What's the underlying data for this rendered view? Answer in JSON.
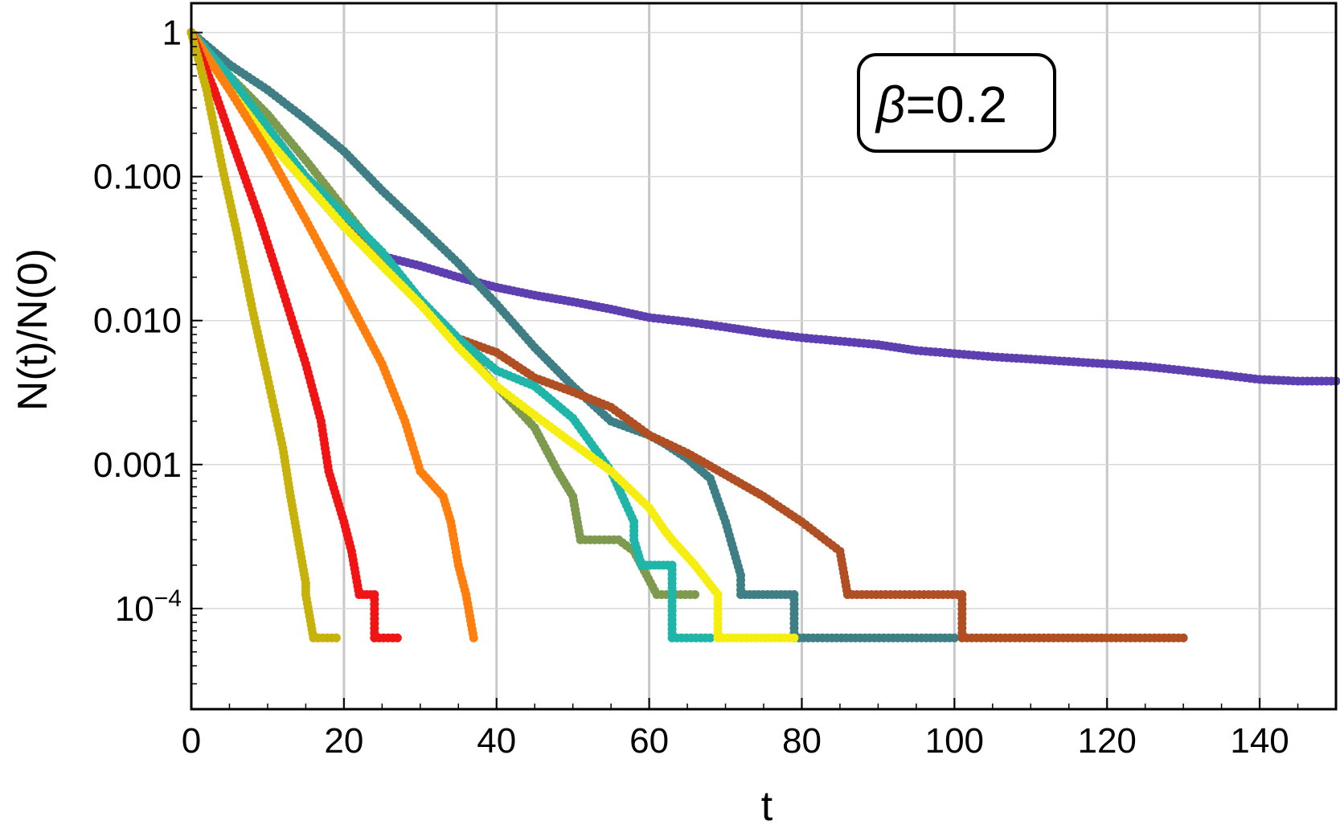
{
  "chart_data": {
    "type": "scatter",
    "title": "",
    "xlabel": "t",
    "ylabel": "N(t)/N(0)",
    "xlim": [
      0,
      150
    ],
    "ylim": [
      2e-05,
      1.6
    ],
    "yscale": "log",
    "grid": true,
    "annotation": {
      "beta_symbol": "β",
      "text": "=0.2"
    },
    "xticks": [
      {
        "value": 0,
        "label": "0"
      },
      {
        "value": 20,
        "label": "20"
      },
      {
        "value": 40,
        "label": "40"
      },
      {
        "value": 60,
        "label": "60"
      },
      {
        "value": 80,
        "label": "80"
      },
      {
        "value": 100,
        "label": "100"
      },
      {
        "value": 120,
        "label": "120"
      },
      {
        "value": 140,
        "label": "140"
      }
    ],
    "yticks": [
      {
        "value": 1,
        "label": "1",
        "kind": "plain"
      },
      {
        "value": 0.1,
        "label": "0.100",
        "kind": "plain"
      },
      {
        "value": 0.01,
        "label": "0.010",
        "kind": "plain"
      },
      {
        "value": 0.001,
        "label": "0.001",
        "kind": "plain"
      },
      {
        "value": 0.0001,
        "label": "10",
        "exponent": "−4",
        "kind": "power"
      }
    ],
    "series": [
      {
        "color": "#5E3FB0",
        "points": [
          [
            0,
            1
          ],
          [
            5,
            0.45
          ],
          [
            10,
            0.2
          ],
          [
            15,
            0.09
          ],
          [
            20,
            0.045
          ],
          [
            25,
            0.028
          ],
          [
            30,
            0.024
          ],
          [
            35,
            0.02
          ],
          [
            40,
            0.017
          ],
          [
            45,
            0.015
          ],
          [
            50,
            0.0135
          ],
          [
            55,
            0.012
          ],
          [
            60,
            0.0105
          ],
          [
            65,
            0.0098
          ],
          [
            70,
            0.009
          ],
          [
            75,
            0.0082
          ],
          [
            80,
            0.0076
          ],
          [
            85,
            0.0072
          ],
          [
            90,
            0.0068
          ],
          [
            95,
            0.0062
          ],
          [
            100,
            0.0059
          ],
          [
            105,
            0.0056
          ],
          [
            110,
            0.0054
          ],
          [
            115,
            0.0052
          ],
          [
            120,
            0.005
          ],
          [
            125,
            0.0048
          ],
          [
            130,
            0.0045
          ],
          [
            135,
            0.0042
          ],
          [
            140,
            0.0039
          ],
          [
            145,
            0.0038
          ],
          [
            150,
            0.0038
          ]
        ]
      },
      {
        "color": "#3E7E84",
        "points": [
          [
            0,
            1
          ],
          [
            5,
            0.6
          ],
          [
            10,
            0.4
          ],
          [
            15,
            0.25
          ],
          [
            20,
            0.15
          ],
          [
            25,
            0.08
          ],
          [
            30,
            0.045
          ],
          [
            35,
            0.025
          ],
          [
            40,
            0.013
          ],
          [
            45,
            0.0065
          ],
          [
            50,
            0.0035
          ],
          [
            55,
            0.002
          ],
          [
            60,
            0.0016
          ],
          [
            62,
            0.0014
          ],
          [
            65,
            0.0011
          ],
          [
            68,
            0.0008
          ],
          [
            70,
            0.0004
          ],
          [
            72,
            0.00017
          ],
          [
            72,
            0.000125
          ],
          [
            79,
            0.000125
          ],
          [
            79,
            6.25e-05
          ],
          [
            100,
            6.25e-05
          ]
        ]
      },
      {
        "color": "#B04F24",
        "points": [
          [
            0,
            1
          ],
          [
            5,
            0.42
          ],
          [
            10,
            0.2
          ],
          [
            15,
            0.1
          ],
          [
            20,
            0.05
          ],
          [
            25,
            0.025
          ],
          [
            30,
            0.013
          ],
          [
            35,
            0.0075
          ],
          [
            40,
            0.006
          ],
          [
            45,
            0.004
          ],
          [
            50,
            0.0032
          ],
          [
            55,
            0.0025
          ],
          [
            60,
            0.0016
          ],
          [
            65,
            0.0012
          ],
          [
            70,
            0.00085
          ],
          [
            75,
            0.0006
          ],
          [
            80,
            0.0004
          ],
          [
            85,
            0.00025
          ],
          [
            86,
            0.000125
          ],
          [
            101,
            0.000125
          ],
          [
            101,
            6.25e-05
          ],
          [
            130,
            6.25e-05
          ]
        ]
      },
      {
        "color": "#7D9A4F",
        "points": [
          [
            0,
            1
          ],
          [
            5,
            0.5
          ],
          [
            10,
            0.27
          ],
          [
            15,
            0.13
          ],
          [
            20,
            0.06
          ],
          [
            25,
            0.028
          ],
          [
            30,
            0.014
          ],
          [
            35,
            0.007
          ],
          [
            40,
            0.0035
          ],
          [
            45,
            0.0018
          ],
          [
            48,
            0.0009
          ],
          [
            50,
            0.0006
          ],
          [
            51,
            0.0003
          ],
          [
            56,
            0.0003
          ],
          [
            58,
            0.00025
          ],
          [
            61,
            0.000125
          ],
          [
            66,
            0.000125
          ]
        ]
      },
      {
        "color": "#1FB5A8",
        "points": [
          [
            0,
            1
          ],
          [
            5,
            0.5
          ],
          [
            10,
            0.22
          ],
          [
            15,
            0.1
          ],
          [
            20,
            0.055
          ],
          [
            25,
            0.03
          ],
          [
            30,
            0.014
          ],
          [
            35,
            0.0075
          ],
          [
            40,
            0.0045
          ],
          [
            45,
            0.0035
          ],
          [
            50,
            0.0021
          ],
          [
            55,
            0.0009
          ],
          [
            58,
            0.0004
          ],
          [
            58,
            0.0003
          ],
          [
            59,
            0.0002
          ],
          [
            63,
            0.0002
          ],
          [
            63,
            6.25e-05
          ],
          [
            68,
            6.25e-05
          ]
        ]
      },
      {
        "color": "#F5EE10",
        "points": [
          [
            0,
            1
          ],
          [
            5,
            0.4
          ],
          [
            10,
            0.18
          ],
          [
            15,
            0.09
          ],
          [
            20,
            0.045
          ],
          [
            25,
            0.024
          ],
          [
            30,
            0.013
          ],
          [
            35,
            0.0065
          ],
          [
            40,
            0.0035
          ],
          [
            45,
            0.0022
          ],
          [
            50,
            0.0014
          ],
          [
            55,
            0.0009
          ],
          [
            60,
            0.0005
          ],
          [
            62,
            0.00035
          ],
          [
            63,
            0.0003
          ],
          [
            66,
            0.0002
          ],
          [
            69,
            0.000125
          ],
          [
            69,
            6.25e-05
          ],
          [
            79,
            6.25e-05
          ]
        ]
      },
      {
        "color": "#FF7F0E",
        "points": [
          [
            0,
            1
          ],
          [
            5,
            0.4
          ],
          [
            10,
            0.15
          ],
          [
            15,
            0.05
          ],
          [
            20,
            0.016
          ],
          [
            25,
            0.005
          ],
          [
            28,
            0.002
          ],
          [
            30,
            0.0009
          ],
          [
            33,
            0.0006
          ],
          [
            34,
            0.0004
          ],
          [
            35,
            0.0002
          ],
          [
            36,
            0.000125
          ],
          [
            37,
            6.25e-05
          ]
        ]
      },
      {
        "color": "#F01414",
        "points": [
          [
            0,
            1
          ],
          [
            3,
            0.4
          ],
          [
            6,
            0.14
          ],
          [
            9,
            0.05
          ],
          [
            12,
            0.016
          ],
          [
            15,
            0.005
          ],
          [
            17,
            0.002
          ],
          [
            18,
            0.0009
          ],
          [
            19,
            0.0006
          ],
          [
            20,
            0.0004
          ],
          [
            21,
            0.00025
          ],
          [
            22,
            0.000125
          ],
          [
            24,
            0.000125
          ],
          [
            24,
            6.25e-05
          ],
          [
            27,
            6.25e-05
          ]
        ]
      },
      {
        "color": "#C7B20C",
        "points": [
          [
            0,
            1
          ],
          [
            2,
            0.4
          ],
          [
            4,
            0.12
          ],
          [
            6,
            0.04
          ],
          [
            8,
            0.012
          ],
          [
            10,
            0.004
          ],
          [
            12,
            0.0013
          ],
          [
            13,
            0.0006
          ],
          [
            14,
            0.0003
          ],
          [
            15,
            0.00015
          ],
          [
            15,
            0.000125
          ],
          [
            16,
            6.25e-05
          ],
          [
            19,
            6.25e-05
          ]
        ]
      }
    ]
  }
}
